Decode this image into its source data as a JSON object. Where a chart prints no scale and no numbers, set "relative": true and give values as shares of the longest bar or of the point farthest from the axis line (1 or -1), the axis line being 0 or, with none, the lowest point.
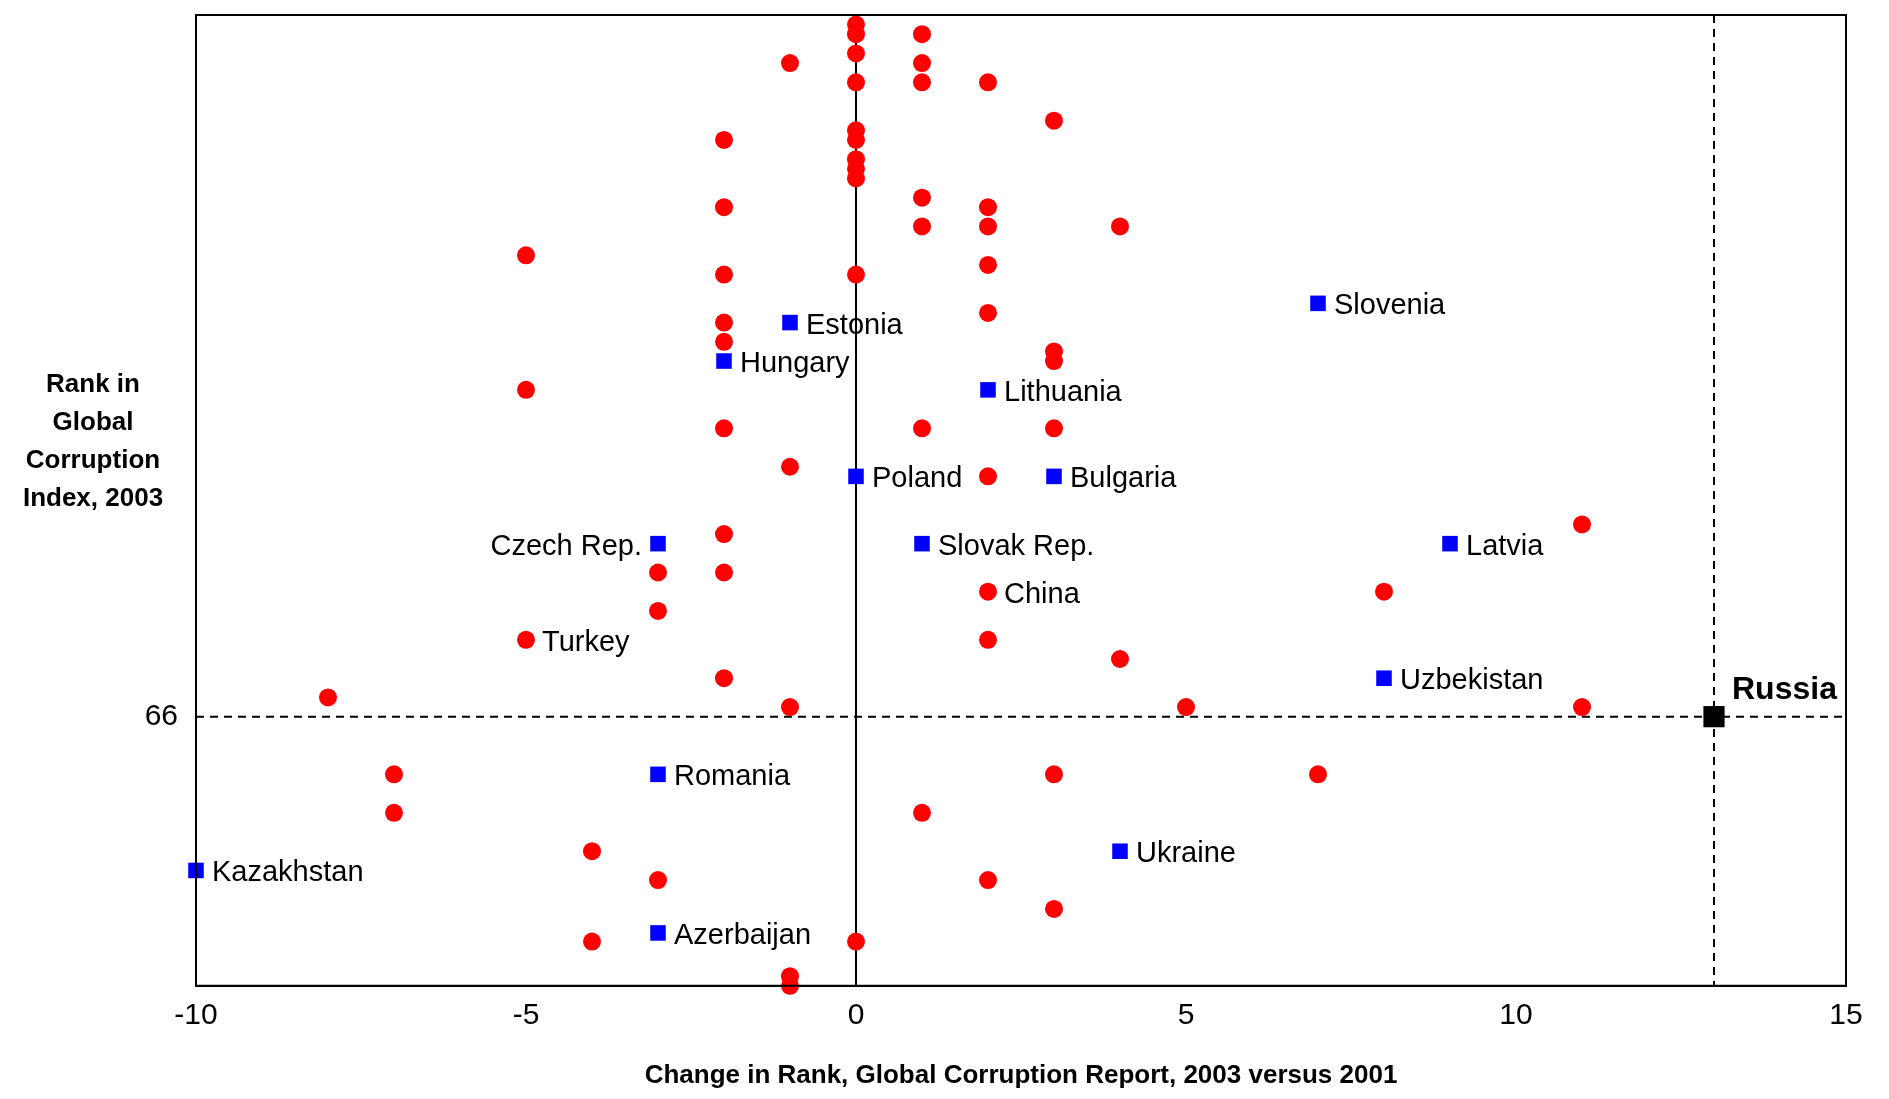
{
  "chart_data": {
    "type": "scatter",
    "xlabel": "Change in Rank, Global Corruption Report, 2003 versus 2001",
    "ylabel": "Rank in Global Corruption Index, 2003",
    "relative": true,
    "xlim": [
      -10,
      15
    ],
    "xticks": [
      -10,
      -5,
      0,
      5,
      10,
      15
    ],
    "grid": false,
    "legend": false,
    "series": [
      {
        "color": "#ff0000",
        "marker": "circle",
        "x": [
          0,
          0,
          0,
          0,
          0,
          0,
          0,
          0,
          0,
          0,
          0,
          1,
          1,
          1,
          1,
          1,
          1,
          1,
          -1,
          -1,
          -1,
          -1,
          -1,
          2,
          2,
          2,
          2,
          2,
          2,
          2,
          2,
          2,
          3,
          3,
          3,
          3,
          3,
          3,
          -2,
          -2,
          -2,
          -2,
          -2,
          -2,
          -2,
          -2,
          -2,
          4,
          4,
          -5,
          -5,
          -5,
          -3,
          -3,
          -3,
          11,
          11,
          8,
          5,
          -8,
          -7,
          -7,
          7,
          -4,
          -4
        ],
        "values": [
          1.0,
          0.99,
          0.97,
          0.94,
          0.89,
          0.88,
          0.86,
          0.85,
          0.84,
          0.74,
          0.046,
          0.99,
          0.96,
          0.94,
          0.82,
          0.79,
          0.58,
          0.18,
          0.96,
          0.54,
          0.29,
          0.01,
          0.0,
          0.94,
          0.81,
          0.79,
          0.75,
          0.7,
          0.53,
          0.41,
          0.36,
          0.11,
          0.9,
          0.66,
          0.65,
          0.58,
          0.22,
          0.08,
          0.88,
          0.81,
          0.74,
          0.69,
          0.67,
          0.58,
          0.47,
          0.43,
          0.32,
          0.79,
          0.34,
          0.76,
          0.62,
          0.36,
          0.43,
          0.39,
          0.11,
          0.48,
          0.29,
          0.41,
          0.29,
          0.3,
          0.22,
          0.18,
          0.22,
          0.14,
          0.046
        ]
      },
      {
        "color": "#0000ff",
        "marker": "square",
        "x": [
          -1,
          -2,
          7,
          2,
          0,
          3,
          -3,
          1,
          9,
          8,
          -3,
          -10,
          4,
          -3
        ],
        "values": [
          0.69,
          0.65,
          0.71,
          0.62,
          0.53,
          0.53,
          0.46,
          0.46,
          0.46,
          0.32,
          0.22,
          0.12,
          0.14,
          0.055
        ]
      },
      {
        "name": "Russia",
        "color": "#000000",
        "marker": "square",
        "x": [
          13
        ],
        "values": [
          0.28
        ]
      }
    ],
    "ref_lines": [
      {
        "axis": "x",
        "value": 0,
        "line_style": "solid"
      },
      {
        "axis": "x",
        "value": 13,
        "line_style": "dashed"
      },
      {
        "axis": "y",
        "value": 0.28,
        "line_style": "dashed"
      }
    ],
    "annotations": [
      "66",
      {
        "text": "Estonia",
        "x": -1,
        "y": 0.69
      },
      {
        "text": "Hungary",
        "x": -2,
        "y": 0.65
      },
      {
        "text": "Slovenia",
        "x": 7,
        "y": 0.71
      },
      {
        "text": "Lithuania",
        "x": 2,
        "y": 0.62
      },
      {
        "text": "Poland",
        "x": 0,
        "y": 0.53
      },
      {
        "text": "Bulgaria",
        "x": 3,
        "y": 0.53
      },
      {
        "text": "Czech Rep.",
        "x": -3,
        "y": 0.46
      },
      {
        "text": "Slovak Rep.",
        "x": 1,
        "y": 0.46
      },
      {
        "text": "Latvia",
        "x": 9,
        "y": 0.46
      },
      {
        "text": "China",
        "x": 2,
        "y": 0.41
      },
      {
        "text": "Turkey",
        "x": -5,
        "y": 0.36
      },
      {
        "text": "Uzbekistan",
        "x": 8,
        "y": 0.32
      },
      {
        "text": "Romania",
        "x": -3,
        "y": 0.22
      },
      {
        "text": "Ukraine",
        "x": 4,
        "y": 0.14
      },
      {
        "text": "Kazakhstan",
        "x": -10,
        "y": 0.12
      },
      {
        "text": "Azerbaijan",
        "x": -3,
        "y": 0.055
      }
    ]
  }
}
